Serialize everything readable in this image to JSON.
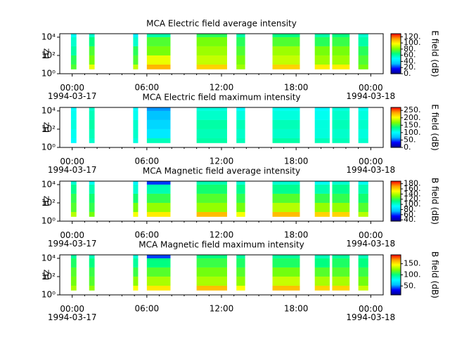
{
  "colormap": [
    "#00008b",
    "#0000ff",
    "#00bfff",
    "#00ffff",
    "#00ff80",
    "#80ff00",
    "#ffff00",
    "#ffa000",
    "#ff0000"
  ],
  "chart_data": [
    {
      "type": "heatmap",
      "title": "MCA  Electric field average intensity",
      "y_label": "Hz",
      "y_log": true,
      "xlim": [
        -1,
        25
      ],
      "ylim": [
        1,
        24000
      ],
      "xticks": [
        {
          "value": 0,
          "label": "00:00\n1994-03-17"
        },
        {
          "value": 6,
          "label": "06:00"
        },
        {
          "value": 12,
          "label": "12:00"
        },
        {
          "value": 18,
          "label": "18:00"
        },
        {
          "value": 24,
          "label": "00:00\n1994-03-18"
        }
      ],
      "yticks": [
        {
          "value": 1,
          "label": "10⁰"
        },
        {
          "value": 100,
          "label": "10²"
        },
        {
          "value": 10000,
          "label": "10⁴"
        }
      ],
      "x_blocks": [
        [
          -0.1,
          0.34
        ],
        [
          1.36,
          1.8
        ],
        [
          4.9,
          5.3
        ],
        [
          6.0,
          7.9
        ],
        [
          10.0,
          12.45
        ],
        [
          13.2,
          13.9
        ],
        [
          16.1,
          18.3
        ],
        [
          19.5,
          20.7
        ],
        [
          20.9,
          22.3
        ],
        [
          23.0,
          23.8
        ]
      ],
      "y_bins": [
        3,
        10,
        100,
        1000,
        10000,
        24000
      ],
      "values": [
        [
          75,
          95,
          90,
          110,
          105,
          85,
          105,
          100,
          100,
          80
        ],
        [
          70,
          80,
          75,
          95,
          90,
          80,
          90,
          85,
          85,
          75
        ],
        [
          60,
          75,
          70,
          80,
          85,
          75,
          85,
          80,
          80,
          70
        ],
        [
          55,
          65,
          55,
          75,
          80,
          70,
          75,
          70,
          72,
          60
        ],
        [
          50,
          55,
          45,
          60,
          70,
          60,
          65,
          60,
          65,
          55
        ]
      ],
      "colorbar_label": "E field (dB)",
      "clim": [
        0,
        130
      ],
      "cticks": [
        {
          "value": 0,
          "label": "0."
        },
        {
          "value": 20,
          "label": "20."
        },
        {
          "value": 40,
          "label": "40."
        },
        {
          "value": 60,
          "label": "60."
        },
        {
          "value": 80,
          "label": "80."
        },
        {
          "value": 100,
          "label": "100."
        },
        {
          "value": 120,
          "label": "120."
        }
      ]
    },
    {
      "type": "heatmap",
      "title": "MCA  Electric field maximum intensity",
      "y_label": "Hz",
      "y_log": true,
      "xlim": [
        -1,
        25
      ],
      "ylim": [
        1,
        24000
      ],
      "xticks": [
        {
          "value": 0,
          "label": "00:00\n1994-03-17"
        },
        {
          "value": 6,
          "label": "06:00"
        },
        {
          "value": 12,
          "label": "12:00"
        },
        {
          "value": 18,
          "label": "18:00"
        },
        {
          "value": 24,
          "label": "00:00\n1994-03-18"
        }
      ],
      "yticks": [
        {
          "value": 1,
          "label": "10⁰"
        },
        {
          "value": 100,
          "label": "10²"
        },
        {
          "value": 10000,
          "label": "10⁴"
        }
      ],
      "x_blocks": [
        [
          -0.1,
          0.34
        ],
        [
          1.36,
          1.8
        ],
        [
          4.9,
          5.3
        ],
        [
          6.0,
          7.9
        ],
        [
          10.0,
          12.45
        ],
        [
          13.2,
          13.9
        ],
        [
          16.1,
          18.3
        ],
        [
          19.5,
          20.7
        ],
        [
          20.9,
          22.3
        ],
        [
          23.0,
          23.8
        ]
      ],
      "y_bins": [
        3,
        10,
        100,
        1000,
        10000,
        24000
      ],
      "values": [
        [
          100,
          115,
          110,
          120,
          125,
          120,
          125,
          120,
          120,
          115
        ],
        [
          105,
          120,
          115,
          90,
          120,
          115,
          115,
          110,
          115,
          110
        ],
        [
          110,
          125,
          115,
          80,
          125,
          120,
          120,
          110,
          120,
          115
        ],
        [
          105,
          120,
          105,
          70,
          115,
          110,
          110,
          105,
          115,
          110
        ],
        [
          100,
          115,
          100,
          60,
          110,
          100,
          105,
          100,
          110,
          105
        ]
      ],
      "colorbar_label": "E field (dB)",
      "clim": [
        0,
        270
      ],
      "cticks": [
        {
          "value": 0,
          "label": "0."
        },
        {
          "value": 50,
          "label": "50."
        },
        {
          "value": 100,
          "label": "100."
        },
        {
          "value": 150,
          "label": "150."
        },
        {
          "value": 200,
          "label": "200."
        },
        {
          "value": 250,
          "label": "250."
        }
      ]
    },
    {
      "type": "heatmap",
      "title": "MCA  Magnetic field average intensity",
      "y_label": "Hz",
      "y_log": true,
      "xlim": [
        -1,
        25
      ],
      "ylim": [
        1,
        24000
      ],
      "xticks": [
        {
          "value": 0,
          "label": "00:00\n1994-03-17"
        },
        {
          "value": 6,
          "label": "06:00"
        },
        {
          "value": 12,
          "label": "12:00"
        },
        {
          "value": 18,
          "label": "18:00"
        },
        {
          "value": 24,
          "label": "00:00\n1994-03-18"
        }
      ],
      "yticks": [
        {
          "value": 1,
          "label": "10⁰"
        },
        {
          "value": 100,
          "label": "10²"
        },
        {
          "value": 10000,
          "label": "10⁴"
        }
      ],
      "x_blocks": [
        [
          -0.1,
          0.34
        ],
        [
          1.36,
          1.8
        ],
        [
          4.9,
          5.3
        ],
        [
          6.0,
          7.9
        ],
        [
          10.0,
          12.45
        ],
        [
          13.2,
          13.9
        ],
        [
          16.1,
          18.3
        ],
        [
          19.5,
          20.7
        ],
        [
          20.9,
          22.3
        ],
        [
          23.0,
          23.8
        ]
      ],
      "y_bins": [
        3,
        10,
        100,
        1000,
        10000,
        24000
      ],
      "values": [
        [
          140,
          130,
          150,
          155,
          165,
          150,
          165,
          160,
          160,
          140
        ],
        [
          125,
          120,
          130,
          135,
          135,
          130,
          140,
          135,
          135,
          125
        ],
        [
          120,
          115,
          115,
          120,
          125,
          120,
          125,
          120,
          120,
          115
        ],
        [
          110,
          105,
          100,
          105,
          115,
          110,
          110,
          105,
          110,
          105
        ],
        [
          100,
          95,
          90,
          60,
          105,
          100,
          100,
          95,
          100,
          95
        ]
      ],
      "colorbar_label": "B field (dB)",
      "clim": [
        35,
        190
      ],
      "cticks": [
        {
          "value": 40,
          "label": "40."
        },
        {
          "value": 60,
          "label": "60."
        },
        {
          "value": 80,
          "label": "80."
        },
        {
          "value": 100,
          "label": "100."
        },
        {
          "value": 120,
          "label": "120."
        },
        {
          "value": 140,
          "label": "140."
        },
        {
          "value": 160,
          "label": "160."
        },
        {
          "value": 180,
          "label": "180."
        }
      ]
    },
    {
      "type": "heatmap",
      "title": "MCA  Magnetic field maximum intensity",
      "y_label": "Hz",
      "y_log": true,
      "xlim": [
        -1,
        25
      ],
      "ylim": [
        1,
        24000
      ],
      "xticks": [
        {
          "value": 0,
          "label": "00:00\n1994-03-17"
        },
        {
          "value": 6,
          "label": "06:00"
        },
        {
          "value": 12,
          "label": "12:00"
        },
        {
          "value": 18,
          "label": "18:00"
        },
        {
          "value": 24,
          "label": "00:00\n1994-03-18"
        }
      ],
      "yticks": [
        {
          "value": 1,
          "label": "10⁰"
        },
        {
          "value": 100,
          "label": "10²"
        },
        {
          "value": 10000,
          "label": "10⁴"
        }
      ],
      "x_blocks": [
        [
          -0.1,
          0.34
        ],
        [
          1.36,
          1.8
        ],
        [
          4.9,
          5.3
        ],
        [
          6.0,
          7.9
        ],
        [
          10.0,
          12.45
        ],
        [
          13.2,
          13.9
        ],
        [
          16.1,
          18.3
        ],
        [
          19.5,
          20.7
        ],
        [
          20.9,
          22.3
        ],
        [
          23.0,
          23.8
        ]
      ],
      "y_bins": [
        3,
        10,
        100,
        1000,
        10000,
        24000
      ],
      "values": [
        [
          130,
          125,
          145,
          150,
          160,
          145,
          160,
          155,
          155,
          135
        ],
        [
          120,
          115,
          125,
          130,
          130,
          125,
          135,
          130,
          130,
          120
        ],
        [
          115,
          110,
          110,
          115,
          120,
          115,
          120,
          115,
          115,
          110
        ],
        [
          105,
          100,
          95,
          100,
          110,
          105,
          105,
          100,
          105,
          100
        ],
        [
          95,
          90,
          85,
          40,
          100,
          95,
          95,
          90,
          95,
          90
        ]
      ],
      "colorbar_label": "B field (dB)",
      "clim": [
        10,
        190
      ],
      "cticks": [
        {
          "value": 50,
          "label": "50."
        },
        {
          "value": 100,
          "label": "100."
        },
        {
          "value": 150,
          "label": "150."
        }
      ]
    }
  ]
}
